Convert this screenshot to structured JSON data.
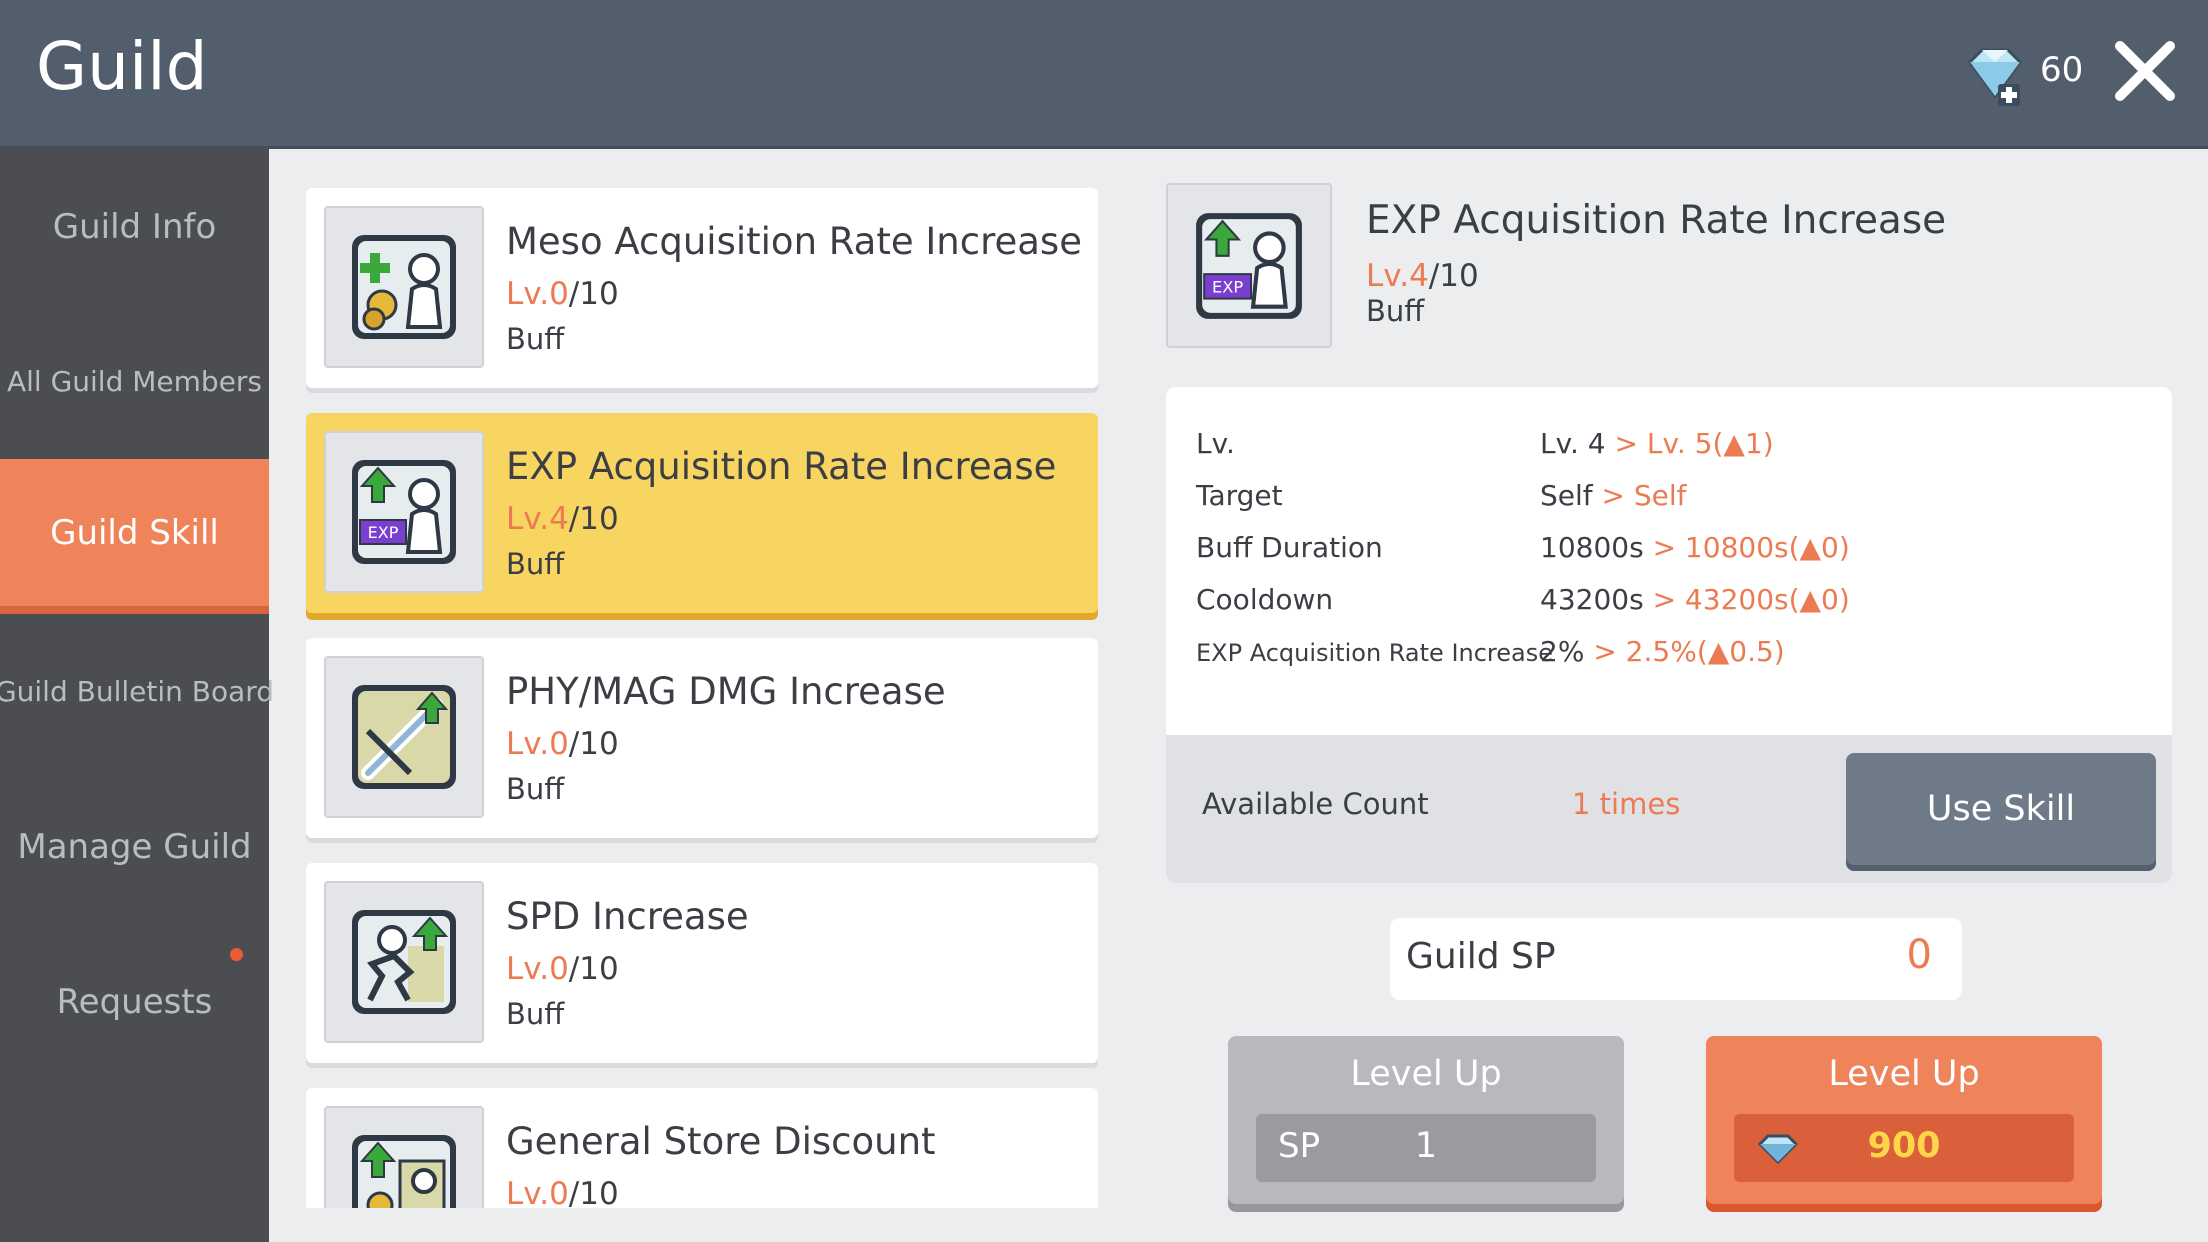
{
  "header": {
    "title": "Guild",
    "gem_count": "60"
  },
  "sidebar": {
    "items": [
      {
        "label": "Guild Info"
      },
      {
        "label": "All Guild Members"
      },
      {
        "label": "Guild Skill"
      },
      {
        "label": "Guild Bulletin Board"
      },
      {
        "label": "Manage Guild"
      },
      {
        "label": "Requests"
      }
    ],
    "active": "Guild Skill"
  },
  "skills": [
    {
      "name": "Meso Acquisition Rate Increase",
      "level": "Lv.0",
      "max": "/10",
      "type": "Buff",
      "icon": "meso-skill-icon"
    },
    {
      "name": "EXP Acquisition Rate Increase",
      "level": "Lv.4",
      "max": "/10",
      "type": "Buff",
      "icon": "exp-skill-icon"
    },
    {
      "name": "PHY/MAG DMG Increase",
      "level": "Lv.0",
      "max": "/10",
      "type": "Buff",
      "icon": "damage-skill-icon"
    },
    {
      "name": "SPD Increase",
      "level": "Lv.0",
      "max": "/10",
      "type": "Buff",
      "icon": "speed-skill-icon"
    },
    {
      "name": "General Store Discount",
      "level": "Lv.0",
      "max": "/10",
      "type": "",
      "icon": "store-discount-skill-icon"
    }
  ],
  "detail": {
    "name": "EXP Acquisition Rate Increase",
    "level": "Lv.4",
    "max": "/10",
    "type": "Buff",
    "stats": [
      {
        "key": "Lv.",
        "cur": "Lv. 4",
        "next": " > Lv. 5(▲1)"
      },
      {
        "key": "Target",
        "cur": "Self",
        "next": " > Self"
      },
      {
        "key": "Buff Duration",
        "cur": "10800s",
        "next": " > 10800s(▲0)"
      },
      {
        "key": "Cooldown",
        "cur": "43200s",
        "next": " > 43200s(▲0)"
      },
      {
        "key": "EXP Acquisition Rate Increase",
        "cur": "2%",
        "next": "  >  2.5%(▲0.5)"
      }
    ],
    "available_label": "Available Count",
    "available_value": "1 times",
    "use_skill_label": "Use Skill"
  },
  "guild_sp": {
    "label": "Guild SP",
    "value": "0"
  },
  "level_up_sp": {
    "label": "Level Up",
    "currency": "SP",
    "cost": "1"
  },
  "level_up_gem": {
    "label": "Level Up",
    "cost": "900"
  },
  "colors": {
    "accent": "#ef835a",
    "selected": "#f8d561",
    "header": "#535e6d"
  }
}
